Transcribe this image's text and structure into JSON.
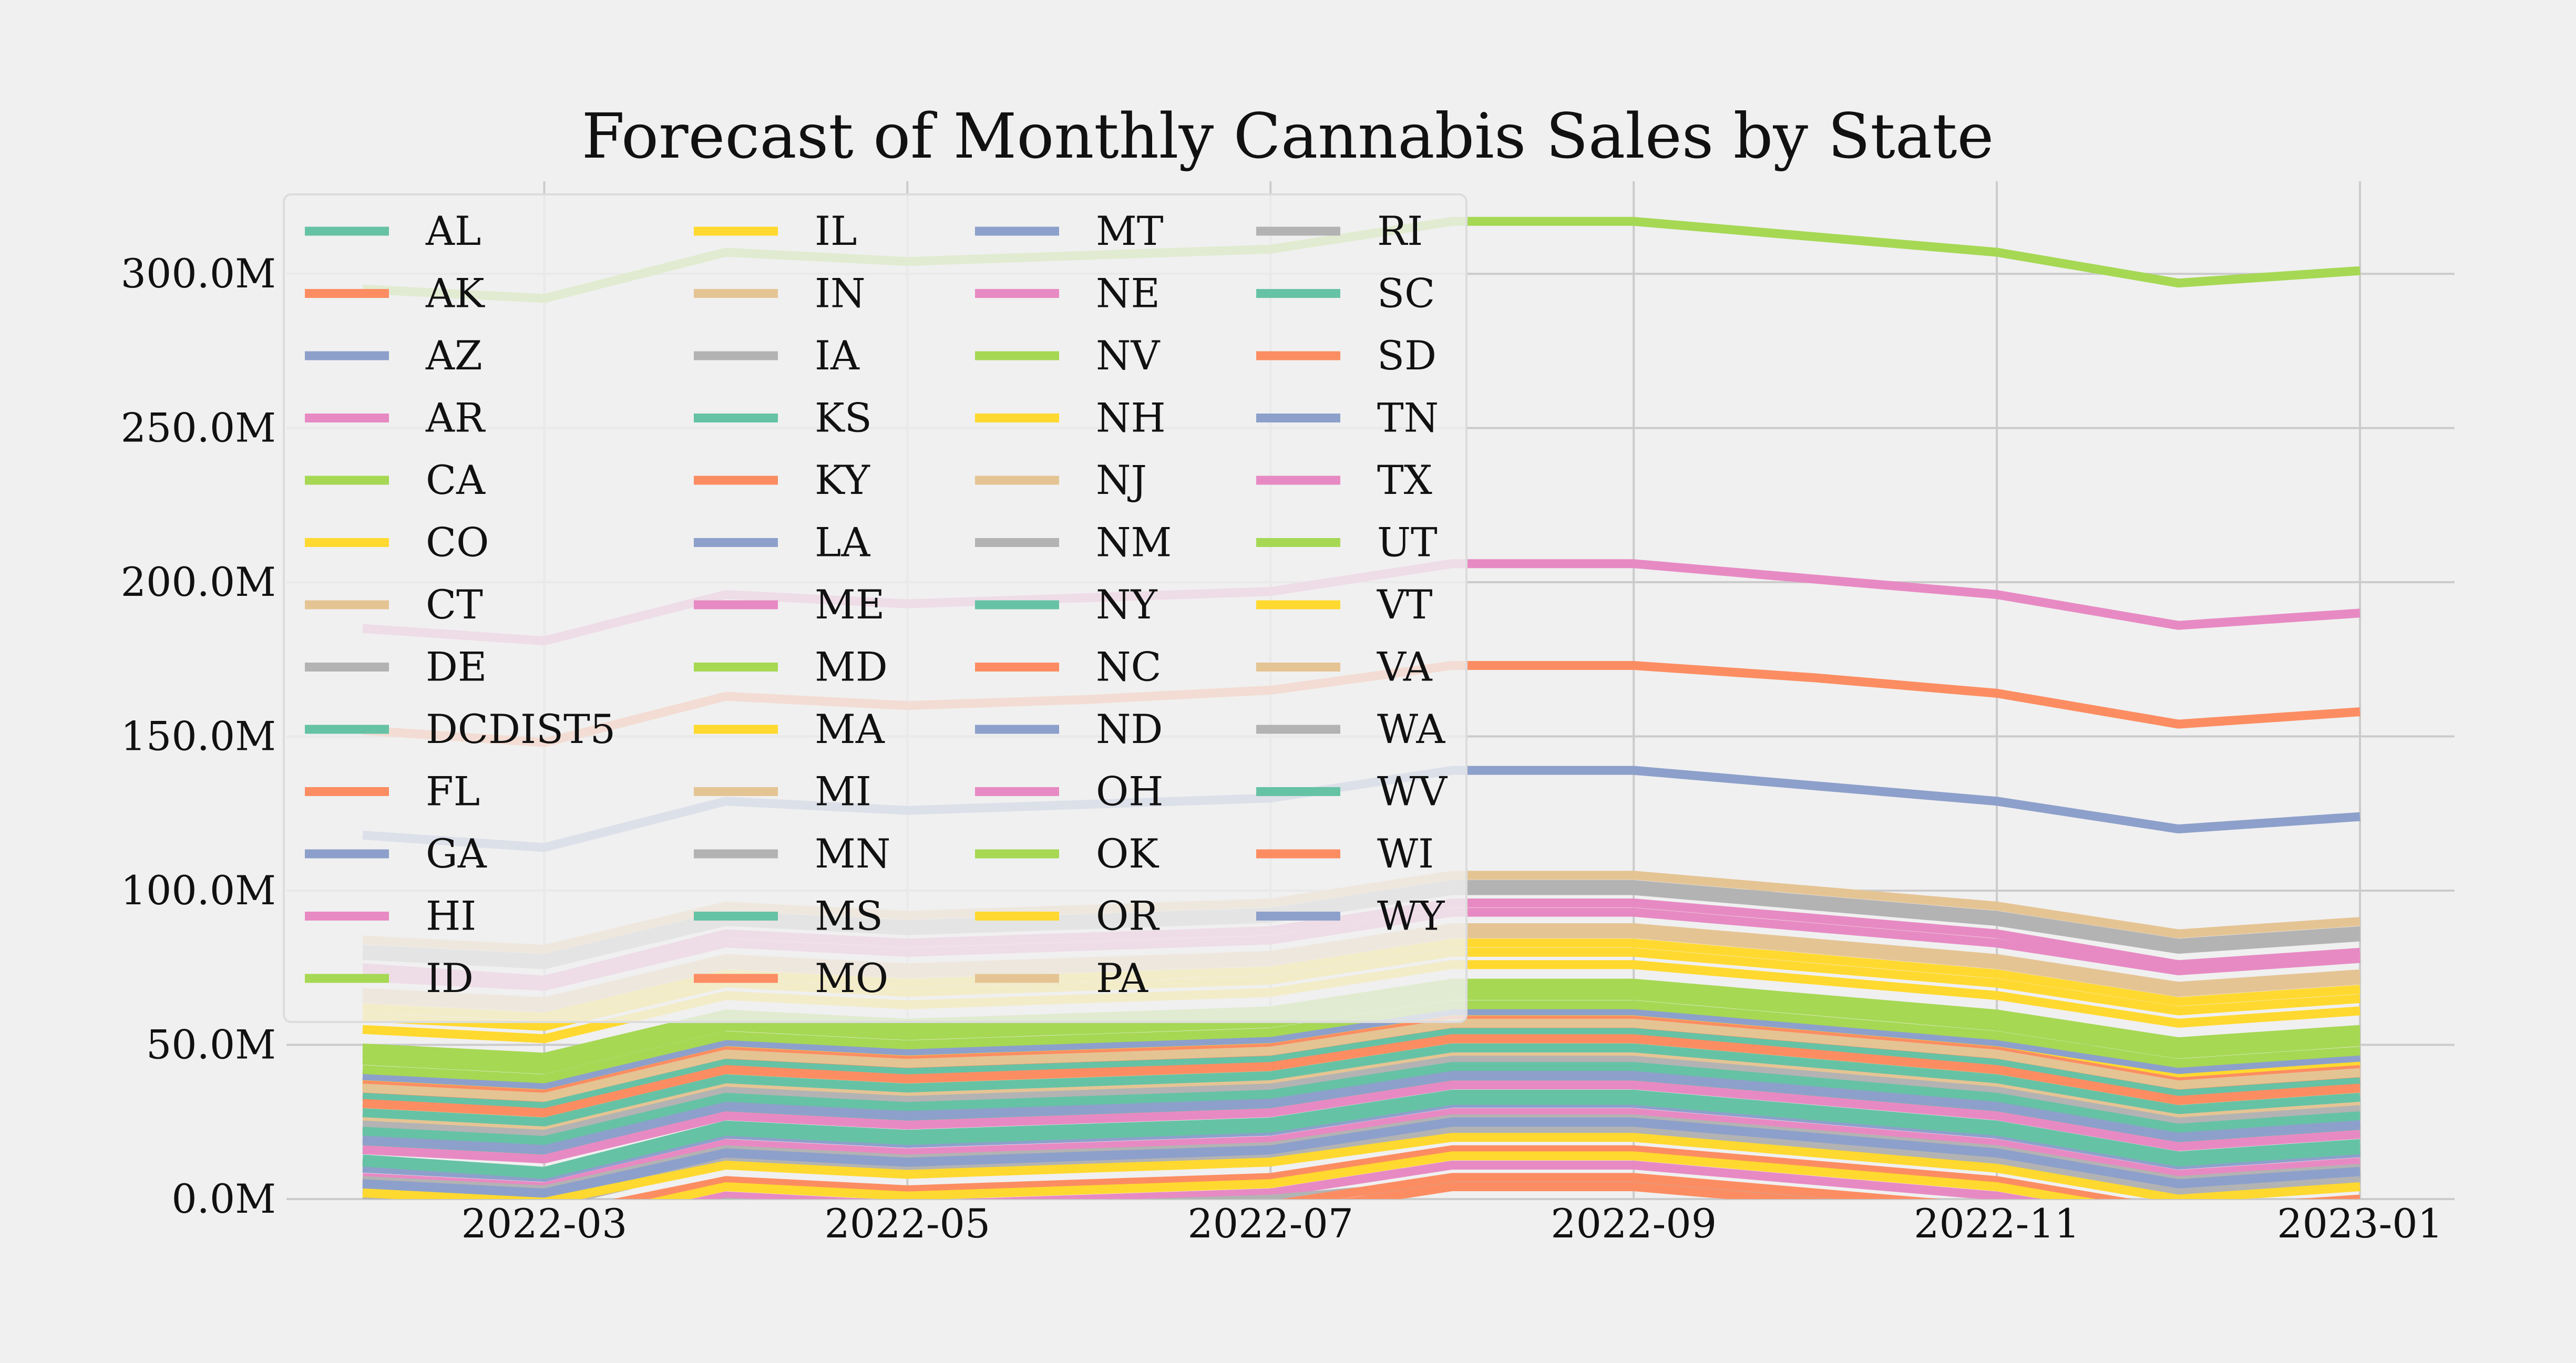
{
  "chart_data": {
    "type": "line",
    "title": "Forecast of Monthly Cannabis Sales by State",
    "xlabel": "",
    "ylabel": "",
    "x": [
      "2022-02",
      "2022-03",
      "2022-04",
      "2022-05",
      "2022-06",
      "2022-07",
      "2022-08",
      "2022-09",
      "2022-10",
      "2022-11",
      "2022-12",
      "2023-01"
    ],
    "xticks": [
      "2022-03",
      "2022-05",
      "2022-07",
      "2022-09",
      "2022-11",
      "2023-01"
    ],
    "ylim": [
      0,
      330
    ],
    "yticks": [
      0,
      50,
      100,
      150,
      200,
      250,
      300
    ],
    "ytick_labels": [
      "0.0M",
      "50.0M",
      "100.0M",
      "150.0M",
      "200.0M",
      "250.0M",
      "300.0M"
    ],
    "grid": true,
    "legend_position": "top-left",
    "legend_columns": 4,
    "colors": [
      "#66c2a5",
      "#fc8d62",
      "#8da0cb",
      "#e78ac3",
      "#a6d854",
      "#ffd92f",
      "#e5c494",
      "#b3b3b3"
    ],
    "series": [
      {
        "name": "AL",
        "values": [
          13,
          9,
          24,
          21,
          23,
          25,
          34,
          34,
          29,
          24,
          14,
          18
        ]
      },
      {
        "name": "AK",
        "values": [
          -2,
          -6,
          6,
          3,
          5,
          7,
          16,
          16,
          11,
          6,
          -4,
          0
        ]
      },
      {
        "name": "AZ",
        "values": [
          20,
          17,
          31,
          28,
          30,
          32,
          41,
          41,
          36,
          31,
          21,
          25
        ]
      },
      {
        "name": "AR",
        "values": [
          -8,
          -12,
          1,
          -2,
          0,
          2,
          11,
          11,
          6,
          1,
          -9,
          -5
        ]
      },
      {
        "name": "CA",
        "values": [
          295,
          292,
          307,
          304,
          306,
          308,
          317,
          317,
          312,
          307,
          297,
          301
        ]
      },
      {
        "name": "CO",
        "values": [
          55,
          52,
          66,
          63,
          65,
          67,
          76,
          76,
          71,
          66,
          57,
          61
        ]
      },
      {
        "name": "CT",
        "values": [
          26,
          23,
          37,
          34,
          36,
          38,
          47,
          47,
          42,
          37,
          27,
          31
        ]
      },
      {
        "name": "DE",
        "values": [
          -10,
          -14,
          -1,
          -4,
          -2,
          0,
          5,
          5,
          0,
          -4,
          -14,
          -10
        ]
      },
      {
        "name": "DCDIST5",
        "values": [
          23,
          20,
          34,
          31,
          33,
          35,
          44,
          44,
          39,
          34,
          24,
          28
        ]
      },
      {
        "name": "FL",
        "values": [
          152,
          148,
          163,
          160,
          162,
          165,
          173,
          173,
          169,
          164,
          154,
          158
        ]
      },
      {
        "name": "GA",
        "values": [
          118,
          114,
          129,
          126,
          128,
          130,
          139,
          139,
          134,
          129,
          120,
          124
        ]
      },
      {
        "name": "HI",
        "values": [
          7,
          4,
          18,
          15,
          17,
          19,
          28,
          28,
          23,
          18,
          8,
          12
        ]
      },
      {
        "name": "ID",
        "values": [
          45,
          42,
          56,
          53,
          55,
          57,
          66,
          66,
          61,
          56,
          47,
          51
        ]
      },
      {
        "name": "IL",
        "values": [
          59,
          56,
          70,
          67,
          69,
          71,
          80,
          80,
          75,
          70,
          61,
          65
        ]
      },
      {
        "name": "IN",
        "values": [
          84,
          81,
          95,
          92,
          94,
          96,
          105,
          105,
          100,
          95,
          86,
          90
        ]
      },
      {
        "name": "IA",
        "values": [
          81,
          78,
          92,
          89,
          91,
          93,
          102,
          102,
          97,
          92,
          83,
          87
        ]
      },
      {
        "name": "KS",
        "values": [
          17,
          14,
          28,
          25,
          27,
          29,
          38,
          38,
          33,
          28,
          18,
          22
        ]
      },
      {
        "name": "KY",
        "values": [
          34,
          31,
          45,
          42,
          44,
          46,
          55,
          55,
          50,
          45,
          35,
          39
        ]
      },
      {
        "name": "LA",
        "values": [
          10,
          7,
          21,
          18,
          20,
          22,
          31,
          31,
          26,
          21,
          11,
          15
        ]
      },
      {
        "name": "ME",
        "values": [
          16,
          13,
          27,
          24,
          26,
          28,
          37,
          37,
          32,
          27,
          17,
          21
        ]
      },
      {
        "name": "MD",
        "values": [
          39,
          36,
          50,
          47,
          49,
          51,
          60,
          60,
          55,
          50,
          41,
          45
        ]
      },
      {
        "name": "MA",
        "values": [
          38,
          35,
          49,
          46,
          48,
          50,
          59,
          59,
          54,
          49,
          40,
          44
        ]
      },
      {
        "name": "MI",
        "values": [
          30,
          27,
          41,
          38,
          40,
          42,
          51,
          51,
          46,
          41,
          31,
          35
        ]
      },
      {
        "name": "MN",
        "values": [
          6,
          3,
          16,
          13,
          15,
          17,
          26,
          26,
          21,
          16,
          6,
          10
        ]
      },
      {
        "name": "MS",
        "values": [
          33,
          30,
          44,
          41,
          43,
          45,
          54,
          54,
          49,
          44,
          34,
          38
        ]
      },
      {
        "name": "MO",
        "values": [
          37,
          34,
          48,
          45,
          47,
          49,
          58,
          58,
          53,
          48,
          38,
          42
        ]
      },
      {
        "name": "MT",
        "values": [
          40,
          37,
          51,
          48,
          50,
          52,
          61,
          61,
          56,
          51,
          42,
          46
        ]
      },
      {
        "name": "NE",
        "values": [
          75,
          71,
          86,
          83,
          85,
          87,
          96,
          96,
          91,
          86,
          76,
          80
        ]
      },
      {
        "name": "NV",
        "values": [
          42,
          39,
          53,
          50,
          52,
          54,
          63,
          63,
          58,
          53,
          44,
          48
        ]
      },
      {
        "name": "NH",
        "values": [
          -5,
          -9,
          4,
          1,
          3,
          5,
          14,
          14,
          9,
          4,
          -6,
          -2
        ]
      },
      {
        "name": "NJ",
        "values": [
          65,
          62,
          76,
          73,
          75,
          77,
          86,
          86,
          81,
          76,
          67,
          71
        ]
      },
      {
        "name": "NM",
        "values": [
          24,
          21,
          35,
          32,
          34,
          36,
          45,
          45,
          40,
          35,
          25,
          29
        ]
      },
      {
        "name": "NY",
        "values": [
          22,
          19,
          33,
          30,
          32,
          34,
          43,
          43,
          38,
          33,
          23,
          27
        ]
      },
      {
        "name": "NC",
        "values": [
          -15,
          -19,
          -6,
          -9,
          -7,
          -5,
          4,
          4,
          -1,
          -6,
          -16,
          -12
        ]
      },
      {
        "name": "ND",
        "values": [
          3,
          0,
          14,
          11,
          13,
          15,
          24,
          24,
          19,
          14,
          4,
          8
        ]
      },
      {
        "name": "OH",
        "values": [
          72,
          69,
          83,
          80,
          82,
          84,
          93,
          93,
          88,
          83,
          74,
          78
        ]
      },
      {
        "name": "OK",
        "values": [
          47,
          44,
          58,
          55,
          57,
          59,
          68,
          68,
          63,
          58,
          49,
          53
        ]
      },
      {
        "name": "OR",
        "values": [
          62,
          59,
          73,
          70,
          72,
          74,
          83,
          83,
          78,
          73,
          64,
          68
        ]
      },
      {
        "name": "PA",
        "values": [
          67,
          64,
          78,
          75,
          77,
          79,
          88,
          88,
          83,
          78,
          69,
          73
        ]
      },
      {
        "name": "RI",
        "values": [
          1,
          -2,
          12,
          9,
          11,
          13,
          22,
          22,
          17,
          12,
          2,
          6
        ]
      },
      {
        "name": "SC",
        "values": [
          28,
          25,
          39,
          36,
          38,
          40,
          49,
          49,
          44,
          39,
          29,
          33
        ]
      },
      {
        "name": "SD",
        "values": [
          31,
          28,
          42,
          39,
          41,
          43,
          52,
          52,
          47,
          42,
          32,
          36
        ]
      },
      {
        "name": "TN",
        "values": [
          5,
          2,
          15,
          12,
          14,
          16,
          25,
          25,
          20,
          15,
          5,
          9
        ]
      },
      {
        "name": "TX",
        "values": [
          185,
          181,
          196,
          193,
          195,
          197,
          206,
          206,
          201,
          196,
          186,
          190
        ]
      },
      {
        "name": "UT",
        "values": [
          49,
          46,
          60,
          57,
          59,
          61,
          70,
          70,
          65,
          60,
          51,
          55
        ]
      },
      {
        "name": "VT",
        "values": [
          2,
          -1,
          11,
          8,
          10,
          12,
          20,
          20,
          15,
          10,
          0,
          4
        ]
      },
      {
        "name": "VA",
        "values": [
          36,
          33,
          47,
          44,
          46,
          48,
          57,
          57,
          52,
          47,
          37,
          41
        ]
      },
      {
        "name": "WA",
        "values": [
          79,
          76,
          90,
          87,
          89,
          91,
          100,
          100,
          95,
          90,
          81,
          85
        ]
      },
      {
        "name": "WV",
        "values": [
          12,
          8,
          22,
          19,
          21,
          23,
          32,
          32,
          27,
          22,
          12,
          16
        ]
      },
      {
        "name": "WI",
        "values": [
          -12,
          -16,
          -3,
          -6,
          -4,
          -2,
          7,
          7,
          2,
          -3,
          -13,
          -9
        ]
      },
      {
        "name": "WY",
        "values": [
          19,
          16,
          30,
          27,
          29,
          31,
          40,
          40,
          35,
          30,
          20,
          24
        ]
      }
    ]
  }
}
